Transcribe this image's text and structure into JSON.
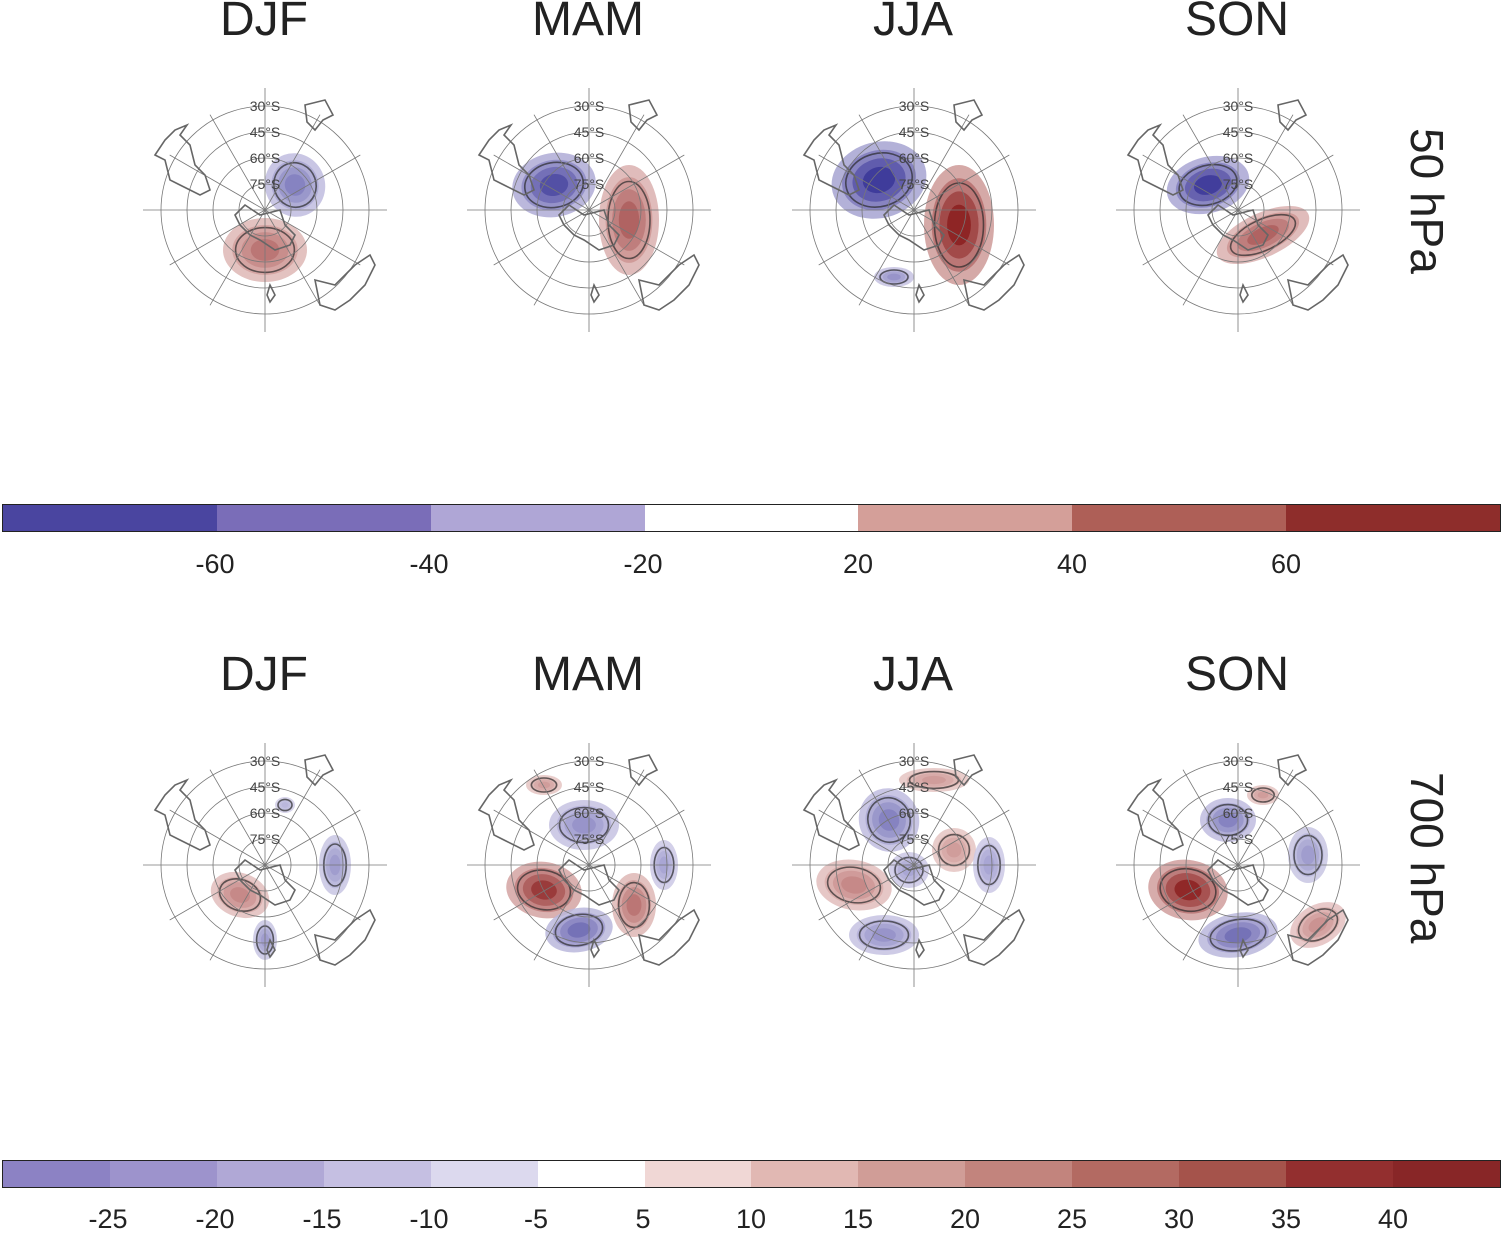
{
  "seasons": [
    "DJF",
    "MAM",
    "JJA",
    "SON"
  ],
  "rows": [
    {
      "level_label": "50 hPa"
    },
    {
      "level_label": "700 hPa"
    }
  ],
  "map": {
    "latitude_labels": [
      "30°S",
      "45°S",
      "60°S",
      "75°S"
    ],
    "projection": "south-polar stereographic"
  },
  "colorbars": [
    {
      "colors": [
        "#4a45a0",
        "#7a6db8",
        "#afa6d6",
        "#ffffff",
        "#d49f99",
        "#ae5f57",
        "#8e2d2b"
      ],
      "tick_labels": [
        "-60",
        "-40",
        "-20",
        "20",
        "40",
        "60"
      ]
    },
    {
      "colors": [
        "#8c82c4",
        "#9d93cc",
        "#b0a8d6",
        "#c5bfe2",
        "#dcd9ee",
        "#ffffff",
        "#f0d7d5",
        "#e1b8b3",
        "#d09d97",
        "#c2847d",
        "#b36a62",
        "#a5534b",
        "#932f2f",
        "#882627"
      ],
      "tick_labels": [
        "-25",
        "-20",
        "-15",
        "-10",
        "-5",
        "5",
        "10",
        "15",
        "20",
        "25",
        "30",
        "35",
        "40"
      ]
    }
  ],
  "colors": {
    "negative_strong": "#3a3698",
    "negative_mid": "#8d85c8",
    "positive_mid": "#c98580",
    "positive_strong": "#8b1f1f",
    "contour": "#2a2a2a",
    "graticule": "#777777",
    "coast": "#666666"
  }
}
